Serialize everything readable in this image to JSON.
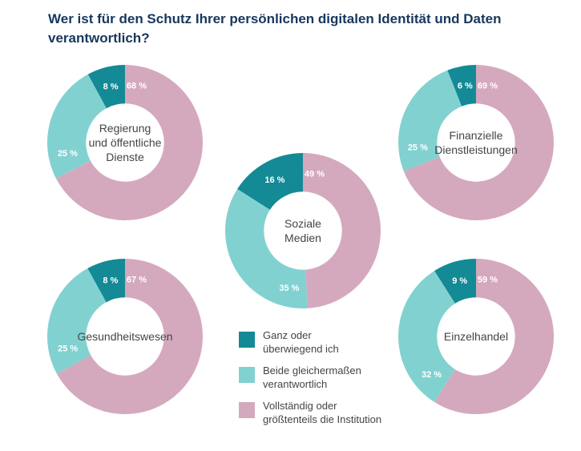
{
  "title": {
    "line1": "Wer ist für den Schutz Ihrer persönlichen digitalen Identität und Daten",
    "line2": "verantwortlich?"
  },
  "colors": {
    "ich": "#138a95",
    "beide": "#82d1d1",
    "institution": "#d4a9bd"
  },
  "chart_data": {
    "type": "pie",
    "subtype": "donut",
    "title": "Wer ist für den Schutz Ihrer persönlichen digitalen Identität und Daten verantwortlich?",
    "series_names": [
      "Ganz oder überwiegend ich",
      "Beide gleichermaßen verantwortlich",
      "Vollständig oder größtenteils die Institution"
    ],
    "charts": [
      {
        "id": "regierung",
        "label_lines": [
          "Regierung",
          "und öffentliche",
          "Dienste"
        ],
        "values": [
          8,
          25,
          68
        ],
        "value_labels": [
          "8 %",
          "25 %",
          "68 %"
        ]
      },
      {
        "id": "finanzielle",
        "label_lines": [
          "Finanzielle",
          "Dienstleistungen"
        ],
        "values": [
          6,
          25,
          69
        ],
        "value_labels": [
          "6 %",
          "25 %",
          "69 %"
        ]
      },
      {
        "id": "soziale-medien",
        "label_lines": [
          "Soziale",
          "Medien"
        ],
        "values": [
          16,
          35,
          49
        ],
        "value_labels": [
          "16 %",
          "35 %",
          "49 %"
        ]
      },
      {
        "id": "gesundheitswesen",
        "label_lines": [
          "Gesundheitswesen"
        ],
        "values": [
          8,
          25,
          67
        ],
        "value_labels": [
          "8 %",
          "25 %",
          "67 %"
        ]
      },
      {
        "id": "einzelhandel",
        "label_lines": [
          "Einzelhandel"
        ],
        "values": [
          9,
          32,
          59
        ],
        "value_labels": [
          "9 %",
          "32 %",
          "59 %"
        ]
      }
    ]
  },
  "legend": [
    {
      "key": "ich",
      "lines": [
        "Ganz oder",
        "überwiegend ich"
      ]
    },
    {
      "key": "beide",
      "lines": [
        "Beide gleichermaßen",
        "verantwortlich"
      ]
    },
    {
      "key": "institution",
      "lines": [
        "Vollständig oder",
        "größtenteils die Institution"
      ]
    }
  ]
}
